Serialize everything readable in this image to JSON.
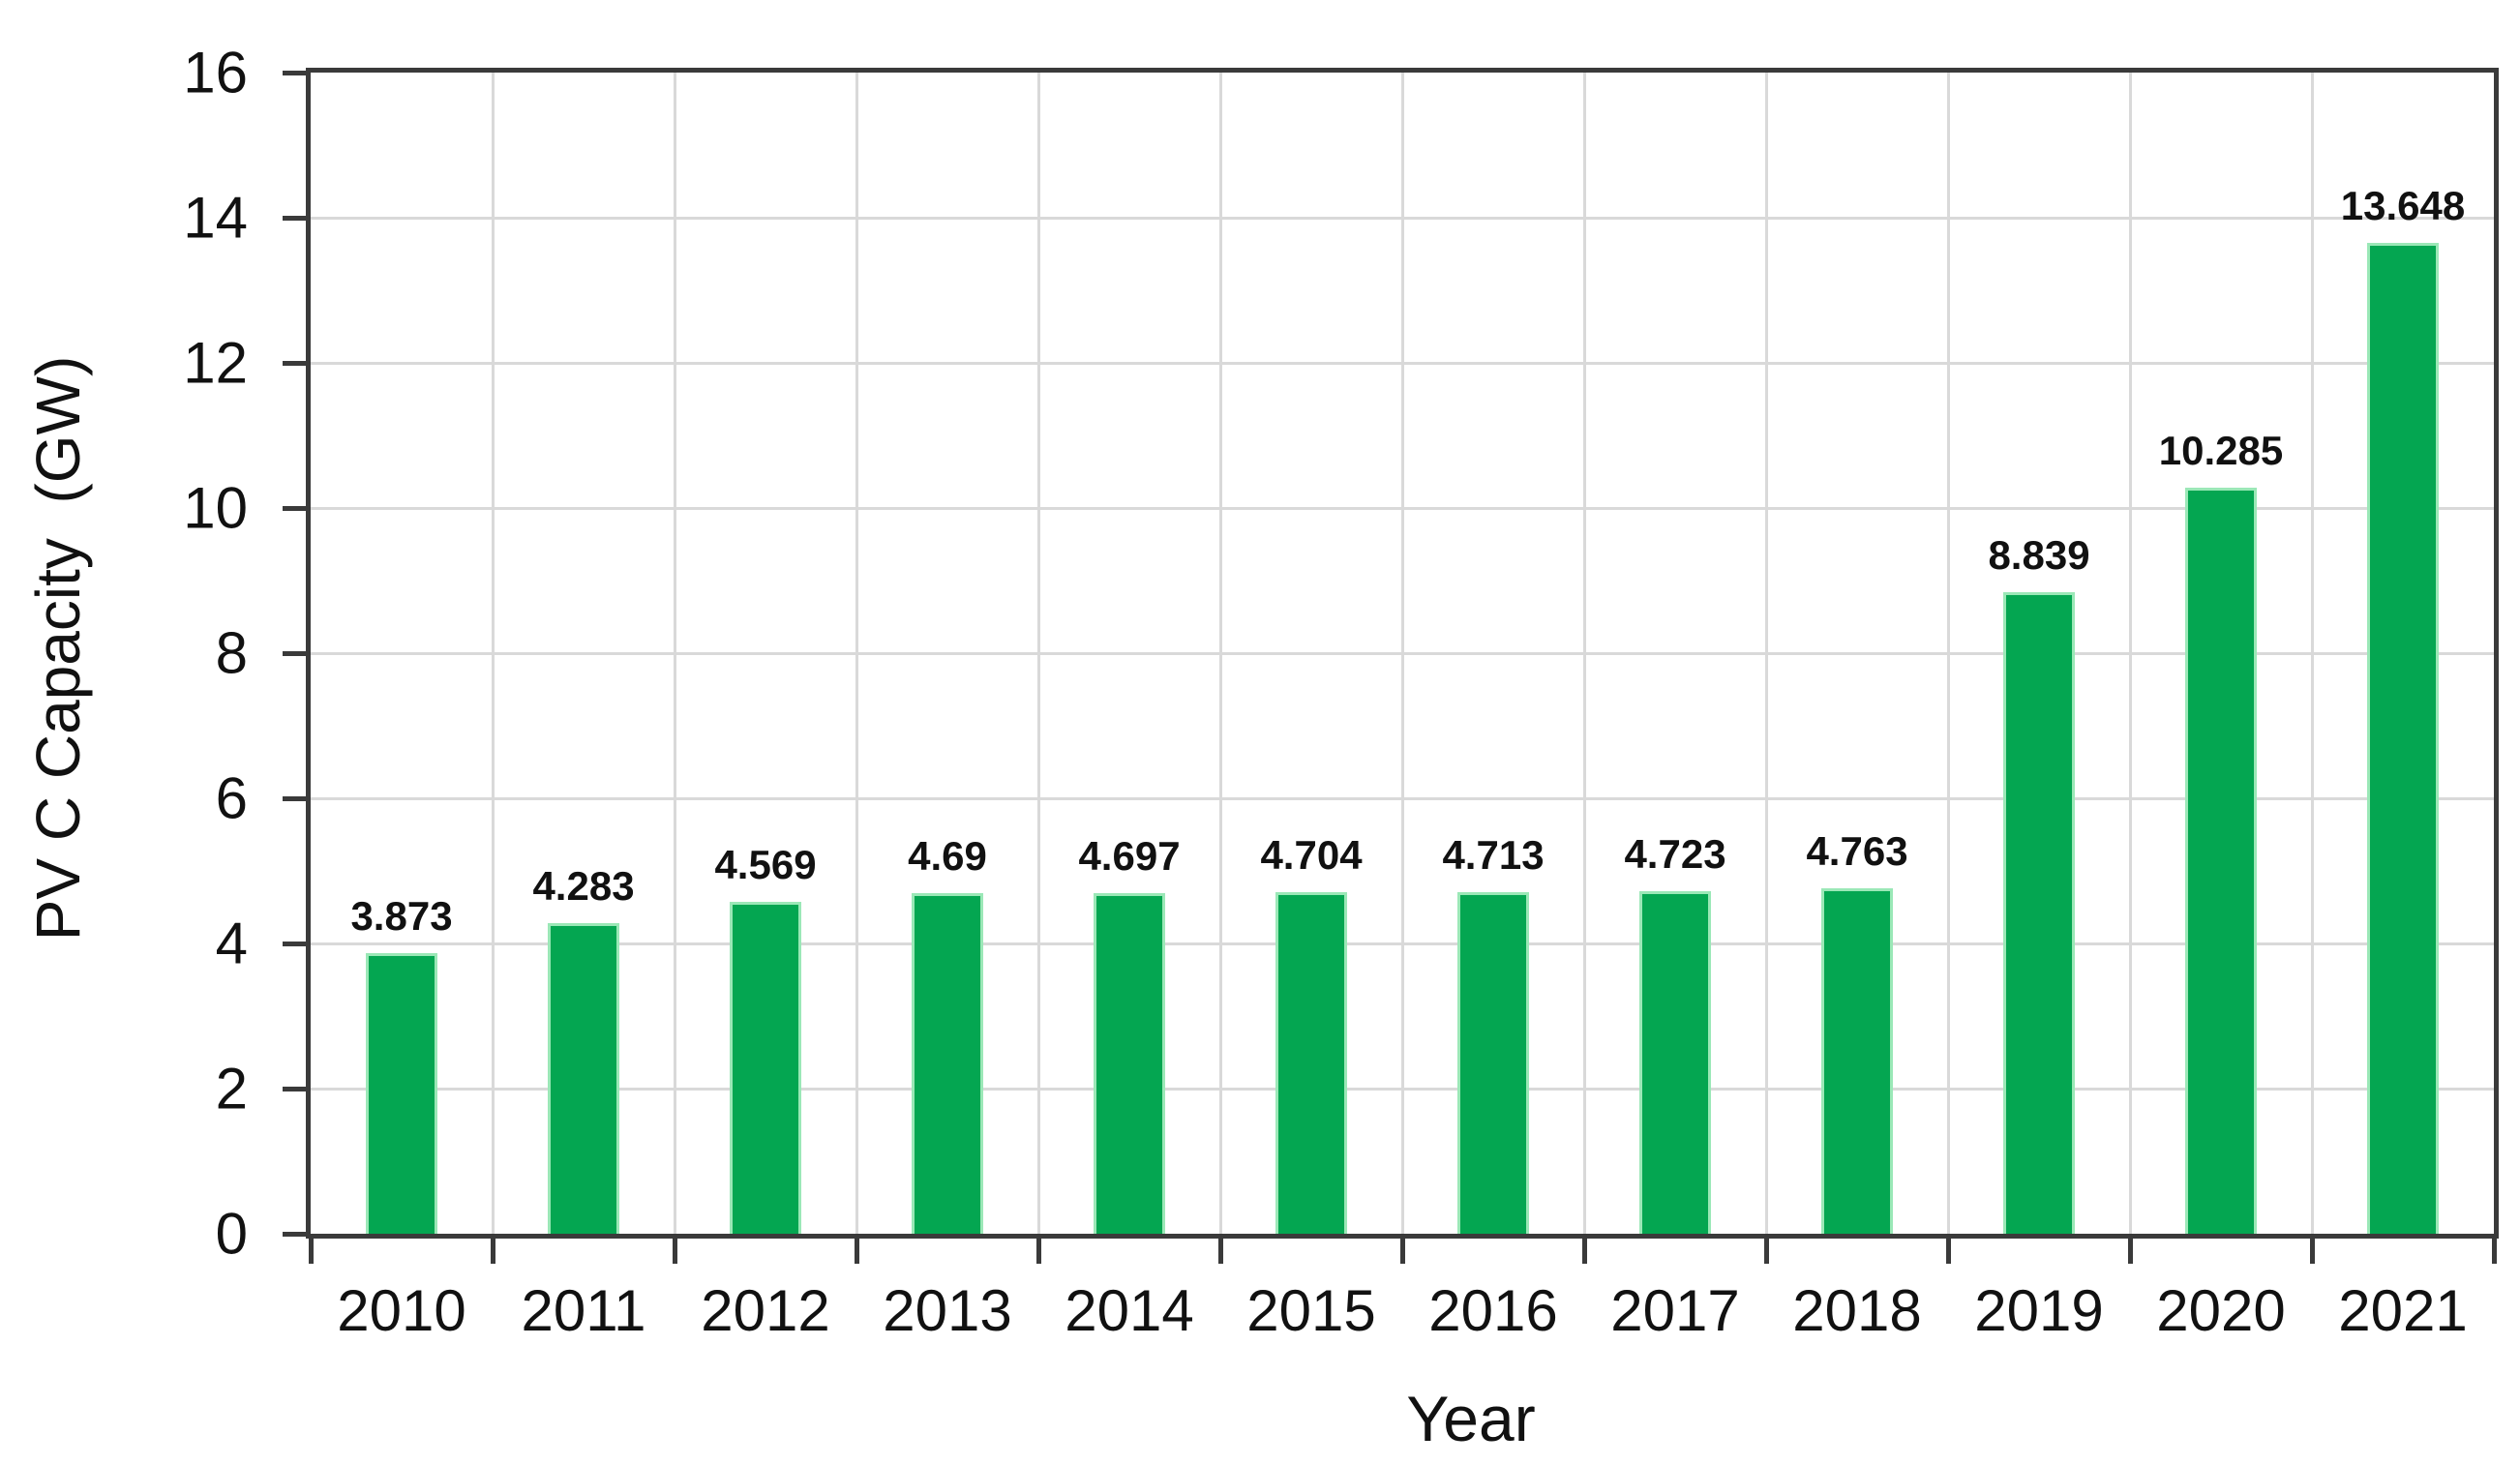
{
  "figure": {
    "background_color": "#ffffff",
    "text_color": "#111111"
  },
  "chart_data": {
    "type": "bar",
    "title": "",
    "xlabel": "Year",
    "ylabel": "PV C Capacity  (GW)",
    "categories": [
      "2010",
      "2011",
      "2012",
      "2013",
      "2014",
      "2015",
      "2016",
      "2017",
      "2018",
      "2019",
      "2020",
      "2021"
    ],
    "values": [
      3.873,
      4.283,
      4.569,
      4.69,
      4.697,
      4.704,
      4.713,
      4.723,
      4.763,
      8.839,
      10.285,
      13.648
    ],
    "value_labels": [
      "3.873",
      "4.283",
      "4.569",
      "4.69",
      "4.697",
      "4.704",
      "4.713",
      "4.723",
      "4.763",
      "8.839",
      "10.285",
      "13.648"
    ],
    "ylim": [
      0,
      16
    ],
    "ytick_step": 2,
    "ytick_labels": [
      "0",
      "2",
      "4",
      "6",
      "8",
      "10",
      "12",
      "14",
      "16"
    ],
    "grid": "on",
    "legend": "none",
    "bar_color": "#04a651",
    "bar_border_color": "#9be8b7",
    "grid_color": "#d9d9d9",
    "axis_color": "#3a3a3a"
  }
}
